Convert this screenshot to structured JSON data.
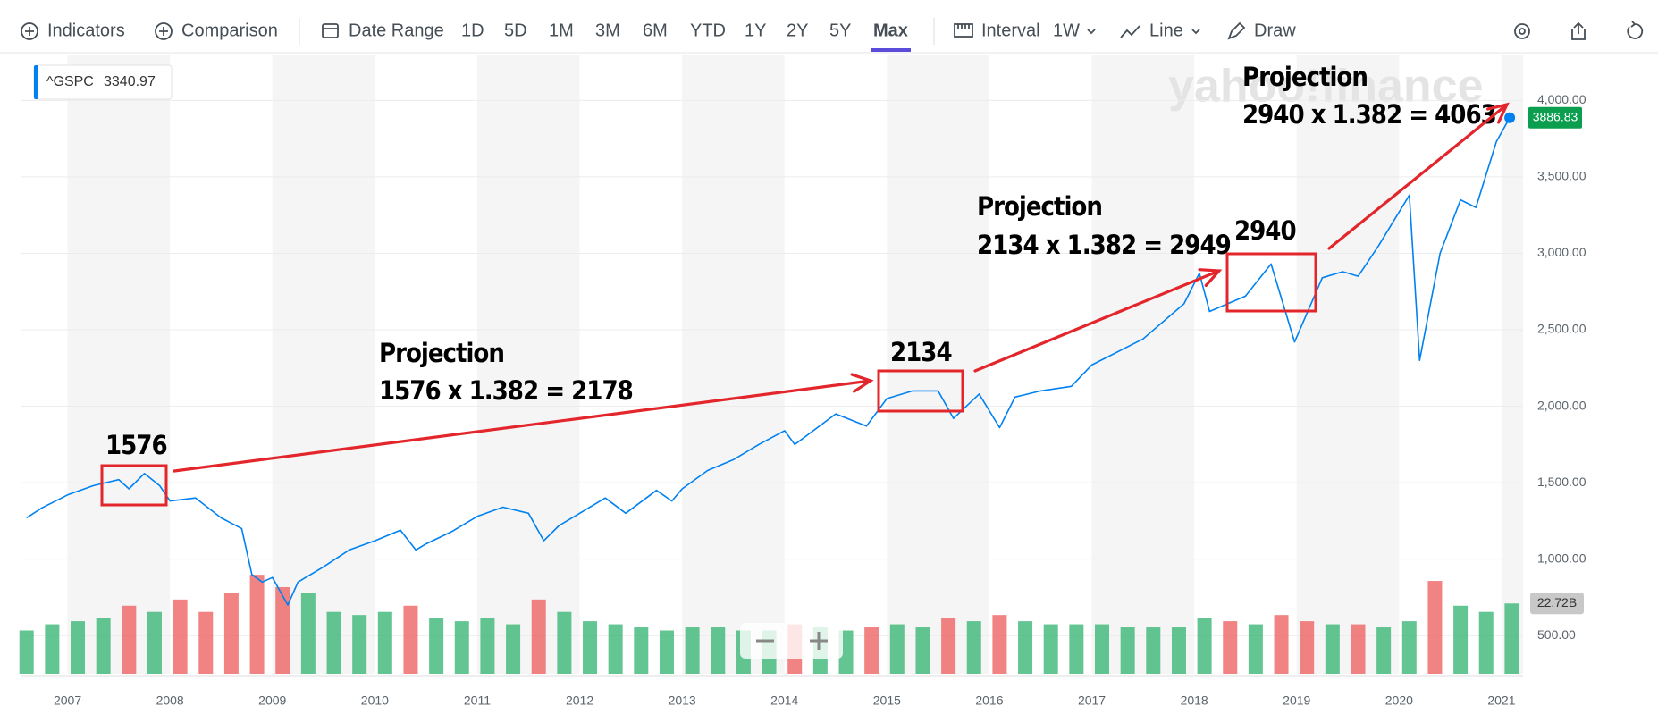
{
  "toolbar": {
    "indicators": "Indicators",
    "comparison": "Comparison",
    "date_range": "Date Range",
    "ranges": [
      "1D",
      "5D",
      "1M",
      "3M",
      "6M",
      "YTD",
      "1Y",
      "2Y",
      "5Y",
      "Max"
    ],
    "interval_label": "Interval",
    "interval": "1W",
    "chart_style": "Line",
    "draw": "Draw"
  },
  "watermark": "yahoo!finance",
  "quote": {
    "symbol": "^GSPC",
    "value": 3340.97
  },
  "chart_data": {
    "type": "line",
    "x": [
      2006.6,
      2006.75,
      2007.0,
      2007.25,
      2007.5,
      2007.6,
      2007.75,
      2007.9,
      2008.0,
      2008.25,
      2008.5,
      2008.7,
      2008.8,
      2008.9,
      2009.0,
      2009.15,
      2009.25,
      2009.5,
      2009.75,
      2010.0,
      2010.25,
      2010.4,
      2010.5,
      2010.75,
      2011.0,
      2011.25,
      2011.5,
      2011.65,
      2011.8,
      2012.0,
      2012.25,
      2012.45,
      2012.75,
      2012.9,
      2013.0,
      2013.25,
      2013.5,
      2013.75,
      2014.0,
      2014.1,
      2014.5,
      2014.8,
      2015.0,
      2015.25,
      2015.5,
      2015.65,
      2015.9,
      2016.1,
      2016.25,
      2016.5,
      2016.8,
      2017.0,
      2017.5,
      2017.9,
      2018.05,
      2018.15,
      2018.5,
      2018.75,
      2018.98,
      2019.25,
      2019.45,
      2019.6,
      2019.8,
      2020.1,
      2020.2,
      2020.4,
      2020.6,
      2020.75,
      2020.95,
      2021.08
    ],
    "series": [
      {
        "name": "^GSPC",
        "color": "#0081f2",
        "values": [
          1270,
          1335,
          1420,
          1480,
          1520,
          1460,
          1560,
          1480,
          1380,
          1400,
          1270,
          1200,
          900,
          850,
          880,
          700,
          850,
          950,
          1060,
          1120,
          1190,
          1060,
          1100,
          1180,
          1280,
          1340,
          1300,
          1120,
          1220,
          1300,
          1400,
          1300,
          1450,
          1380,
          1460,
          1580,
          1650,
          1750,
          1840,
          1750,
          1950,
          1870,
          2050,
          2100,
          2100,
          1920,
          2080,
          1860,
          2060,
          2100,
          2130,
          2270,
          2440,
          2670,
          2870,
          2620,
          2720,
          2930,
          2420,
          2840,
          2880,
          2850,
          3050,
          3380,
          2300,
          3000,
          3350,
          3300,
          3730,
          3886.83
        ]
      }
    ],
    "xlim": [
      2006.55,
      2021.21
    ],
    "xticks": [
      2007,
      2008,
      2009,
      2010,
      2011,
      2012,
      2013,
      2014,
      2015,
      2016,
      2017,
      2018,
      2019,
      2020,
      2021
    ],
    "ylim": [
      250,
      4300
    ],
    "yticks": [
      {
        "value": 500,
        "label": "500.00"
      },
      {
        "value": 1000,
        "label": "1,000.00"
      },
      {
        "value": 1500,
        "label": "1,500.00"
      },
      {
        "value": 2000,
        "label": "2,000.00"
      },
      {
        "value": 2500,
        "label": "2,500.00"
      },
      {
        "value": 3000,
        "label": "3,000.00"
      },
      {
        "value": 3500,
        "label": "3,500.00"
      },
      {
        "value": 4000,
        "label": "4,000.00"
      }
    ],
    "grid": true,
    "y2lim": [
      0,
      200
    ],
    "volume": {
      "axis": "y2",
      "up_color": "#2fb36e",
      "down_color": "#ee5a5a",
      "x": [
        2006.6,
        2006.85,
        2007.1,
        2007.35,
        2007.6,
        2007.85,
        2008.1,
        2008.35,
        2008.6,
        2008.85,
        2009.1,
        2009.35,
        2009.6,
        2009.85,
        2010.1,
        2010.35,
        2010.6,
        2010.85,
        2011.1,
        2011.35,
        2011.6,
        2011.85,
        2012.1,
        2012.35,
        2012.6,
        2012.85,
        2013.1,
        2013.35,
        2013.6,
        2013.85,
        2014.1,
        2014.35,
        2014.6,
        2014.85,
        2015.1,
        2015.35,
        2015.6,
        2015.85,
        2016.1,
        2016.35,
        2016.6,
        2016.85,
        2017.1,
        2017.35,
        2017.6,
        2017.85,
        2018.1,
        2018.35,
        2018.6,
        2018.85,
        2019.1,
        2019.35,
        2019.6,
        2019.85,
        2020.1,
        2020.35,
        2020.6,
        2020.85,
        2021.1
      ],
      "values": [
        14,
        16,
        17,
        18,
        22,
        20,
        24,
        20,
        26,
        32,
        28,
        26,
        20,
        19,
        20,
        22,
        18,
        17,
        18,
        16,
        24,
        20,
        17,
        16,
        15,
        14,
        15,
        15,
        14,
        14,
        16,
        15,
        14,
        15,
        16,
        15,
        18,
        17,
        19,
        17,
        16,
        16,
        16,
        15,
        15,
        15,
        18,
        17,
        16,
        19,
        17,
        16,
        16,
        15,
        17,
        30,
        22,
        20,
        22.72
      ],
      "value_labels": [
        null,
        null,
        null,
        null,
        null,
        null,
        null,
        null,
        null,
        null,
        null,
        null,
        null,
        null,
        null,
        null,
        null,
        null,
        null,
        null,
        null,
        null,
        null,
        null,
        null,
        null,
        null,
        null,
        null,
        null,
        null,
        null,
        null,
        null,
        null,
        null,
        null,
        null,
        null,
        null,
        null,
        null,
        null,
        null,
        null,
        null,
        null,
        null,
        null,
        null,
        null,
        null,
        null,
        null,
        null,
        null,
        null,
        null,
        "22.72B"
      ]
    },
    "annotations": [
      {
        "label": "1576",
        "title": "Projection",
        "text": "1576 x 1.382 = 2178"
      },
      {
        "label": "2134",
        "title": "Projection",
        "text": "2134 x 1.382 = 2949"
      },
      {
        "label": "2940",
        "title": "Projection",
        "text": "2940 x 1.382 = 4063"
      }
    ]
  }
}
